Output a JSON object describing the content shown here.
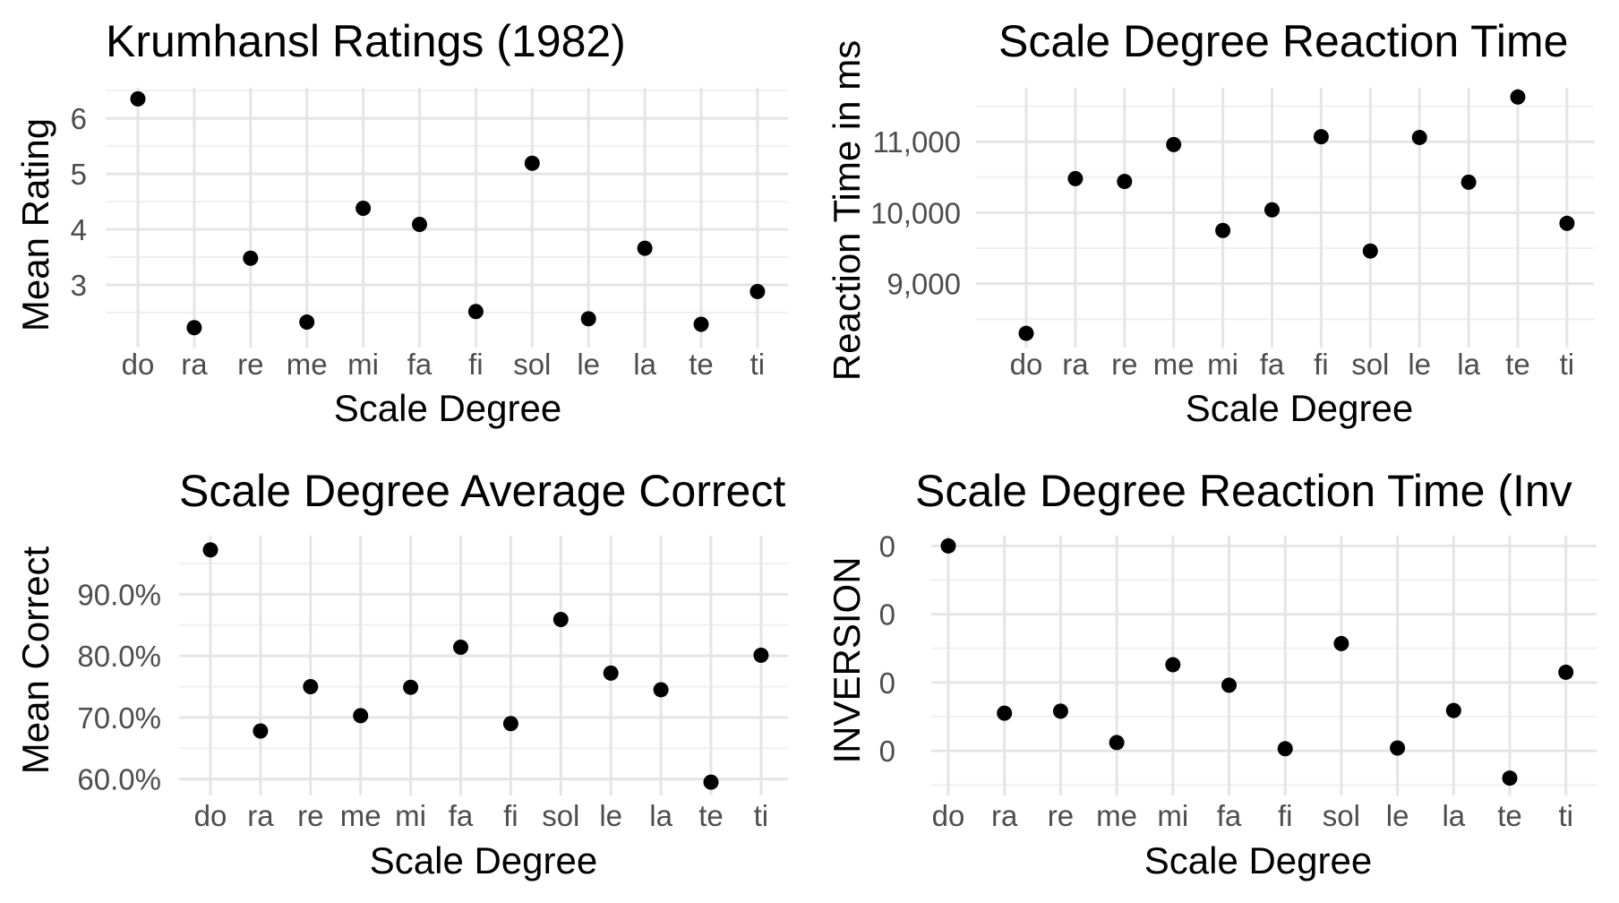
{
  "chart_data": [
    {
      "type": "scatter",
      "title": "Krumhansl Ratings (1982)",
      "xlabel": "Scale Degree",
      "ylabel": "Mean Rating",
      "categories": [
        "do",
        "ra",
        "re",
        "me",
        "mi",
        "fa",
        "fi",
        "sol",
        "le",
        "la",
        "te",
        "ti"
      ],
      "values": [
        6.35,
        2.23,
        3.48,
        2.33,
        4.38,
        4.09,
        2.52,
        5.19,
        2.39,
        3.66,
        2.29,
        2.88
      ],
      "y_ticks": [
        3,
        4,
        5,
        6
      ],
      "y_tick_labels": [
        "3",
        "4",
        "5",
        "6"
      ],
      "ylim": [
        2.0,
        6.55
      ],
      "grid": true
    },
    {
      "type": "scatter",
      "title": "Scale Degree Reaction Time",
      "xlabel": "Scale Degree",
      "ylabel": "Reaction Time in ms",
      "categories": [
        "do",
        "ra",
        "re",
        "me",
        "mi",
        "fa",
        "fi",
        "sol",
        "le",
        "la",
        "te",
        "ti"
      ],
      "values": [
        8300,
        10480,
        10440,
        10960,
        9750,
        10040,
        11070,
        9460,
        11060,
        10430,
        11630,
        9850
      ],
      "y_ticks": [
        9000,
        10000,
        11000
      ],
      "y_tick_labels": [
        "9,000",
        "10,000",
        "11,000"
      ],
      "ylim": [
        8200,
        11760
      ],
      "grid": true
    },
    {
      "type": "scatter",
      "title": "Scale Degree Average Correct",
      "xlabel": "Scale Degree",
      "ylabel": "Mean Correct",
      "categories": [
        "do",
        "ra",
        "re",
        "me",
        "mi",
        "fa",
        "fi",
        "sol",
        "le",
        "la",
        "te",
        "ti"
      ],
      "values": [
        0.972,
        0.678,
        0.75,
        0.703,
        0.749,
        0.814,
        0.69,
        0.859,
        0.772,
        0.745,
        0.595,
        0.801
      ],
      "y_ticks": [
        0.6,
        0.7,
        0.8,
        0.9
      ],
      "y_tick_labels": [
        "60.0%",
        "70.0%",
        "80.0%",
        "90.0%"
      ],
      "ylim": [
        0.585,
        0.995
      ],
      "grid": true
    },
    {
      "type": "scatter",
      "title": "Scale Degree Reaction Time (Inv",
      "xlabel": "Scale Degree",
      "ylabel": "INVERSION",
      "categories": [
        "do",
        "ra",
        "re",
        "me",
        "mi",
        "fa",
        "fi",
        "sol",
        "le",
        "la",
        "te",
        "ti"
      ],
      "values": [
        0.00012,
        9.55e-05,
        9.58e-05,
        9.12e-05,
        0.0001026,
        9.96e-05,
        9.03e-05,
        0.0001057,
        9.04e-05,
        9.59e-05,
        8.6e-05,
        0.0001015
      ],
      "y_ticks": [
        9e-05,
        0.0001,
        0.00011,
        0.00012
      ],
      "y_tick_labels": [
        "0",
        "0",
        "0",
        "0"
      ],
      "ylim": [
        8.45e-05,
        0.0001215
      ],
      "grid": true
    }
  ]
}
